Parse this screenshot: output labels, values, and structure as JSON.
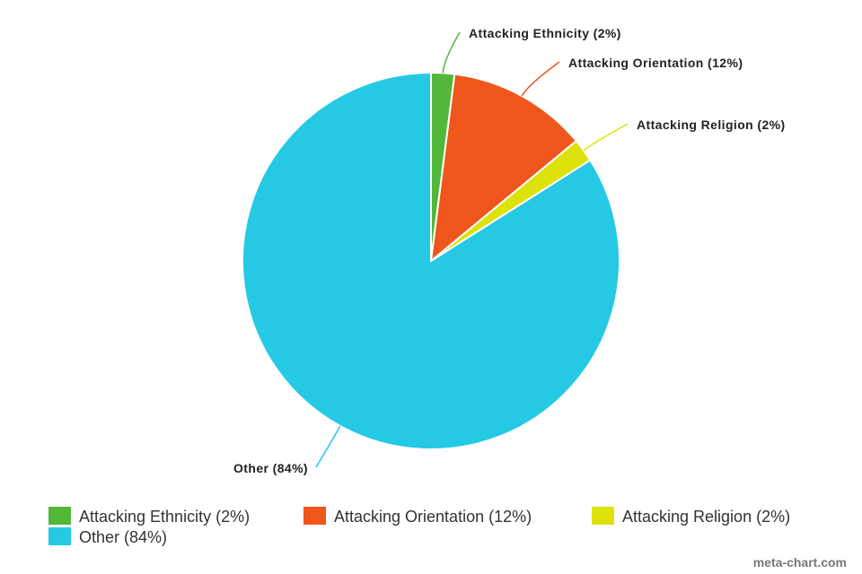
{
  "chart_data": {
    "type": "pie",
    "slices": [
      {
        "label": "Attacking Ethnicity (2%)",
        "value": 2,
        "color": "#52b83a"
      },
      {
        "label": "Attacking Orientation (12%)",
        "value": 12,
        "color": "#ef561c"
      },
      {
        "label": "Attacking Religion (2%)",
        "value": 2,
        "color": "#dde20a"
      },
      {
        "label": "Other (84%)",
        "value": 84,
        "color": "#25c9e4"
      }
    ],
    "legend_position": "bottom-left",
    "start_angle": "12 o'clock, clockwise"
  },
  "credit": "meta-chart.com"
}
